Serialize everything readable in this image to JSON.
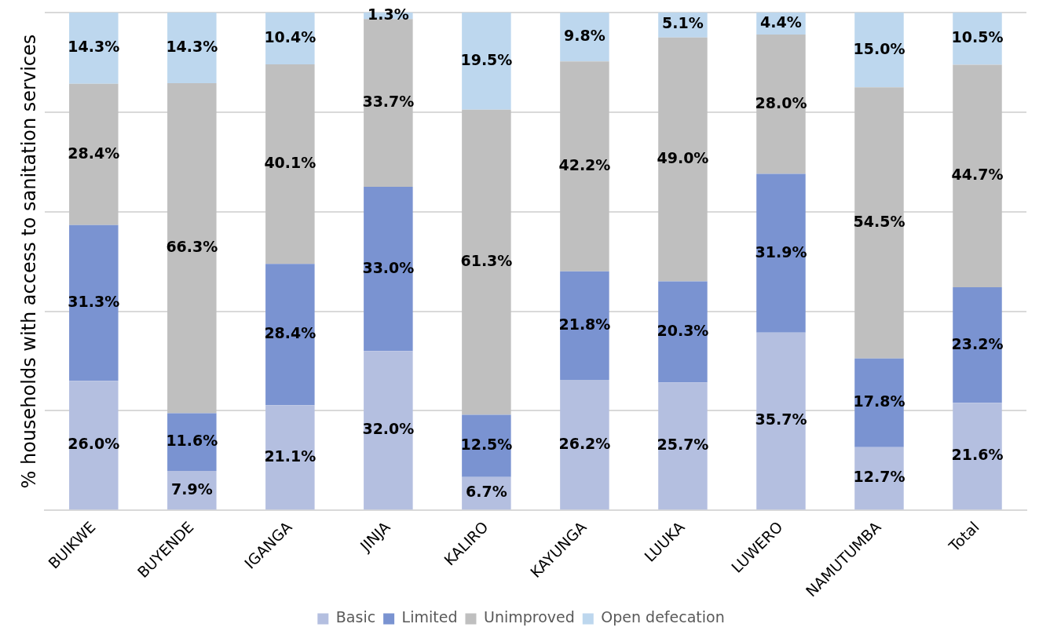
{
  "chart_data": {
    "type": "bar",
    "stacked": true,
    "ylabel": "% households with access to sanitation services",
    "categories": [
      "BUIKWE",
      "BUYENDE",
      "IGANGA",
      "JINJA",
      "KALIRO",
      "KAYUNGA",
      "LUUKA",
      "LUWERO",
      "NAMUTUMBA",
      "Total"
    ],
    "series": [
      {
        "name": "Basic",
        "color": "#b4bfe0",
        "values": [
          26.0,
          7.9,
          21.1,
          32.0,
          6.7,
          26.2,
          25.7,
          35.7,
          12.7,
          21.6
        ],
        "value_labels": [
          "26.0%",
          "7.9%",
          "21.1%",
          "32.0%",
          "6.7%",
          "26.2%",
          "25.7%",
          "35.7%",
          "12.7%",
          "21.6%"
        ]
      },
      {
        "name": "Limited",
        "color": "#7a93d1",
        "values": [
          31.3,
          11.6,
          28.4,
          33.0,
          12.5,
          21.8,
          20.3,
          31.9,
          17.8,
          23.2
        ],
        "value_labels": [
          "31.3%",
          "11.6%",
          "28.4%",
          "33.0%",
          "12.5%",
          "21.8%",
          "20.3%",
          "31.9%",
          "17.8%",
          "23.2%"
        ]
      },
      {
        "name": "Unimproved",
        "color": "#bfbfbf",
        "values": [
          28.4,
          66.3,
          40.1,
          33.7,
          61.3,
          42.2,
          49.0,
          28.0,
          54.5,
          44.7
        ],
        "value_labels": [
          "28.4%",
          "66.3%",
          "40.1%",
          "33.7%",
          "61.3%",
          "42.2%",
          "49.0%",
          "28.0%",
          "54.5%",
          "44.7%"
        ]
      },
      {
        "name": "Open defecation",
        "color": "#bdd7ee",
        "values": [
          14.3,
          14.3,
          10.4,
          1.3,
          19.5,
          9.8,
          5.1,
          4.4,
          15.0,
          10.5
        ],
        "value_labels": [
          "14.3%",
          "14.3%",
          "10.4%",
          "1.3%",
          "19.5%",
          "9.8%",
          "5.1%",
          "4.4%",
          "15.0%",
          "10.5%"
        ]
      }
    ],
    "ylim": [
      0,
      100
    ],
    "yticks": [
      {
        "value": 0,
        "label": null
      },
      {
        "value": 20,
        "label": null
      },
      {
        "value": 40,
        "label": null
      },
      {
        "value": 60,
        "label": null
      },
      {
        "value": 80,
        "label": null
      },
      {
        "value": 100,
        "label": null
      }
    ],
    "grid": "y",
    "tick_labels": "x",
    "legend": "bottom"
  }
}
